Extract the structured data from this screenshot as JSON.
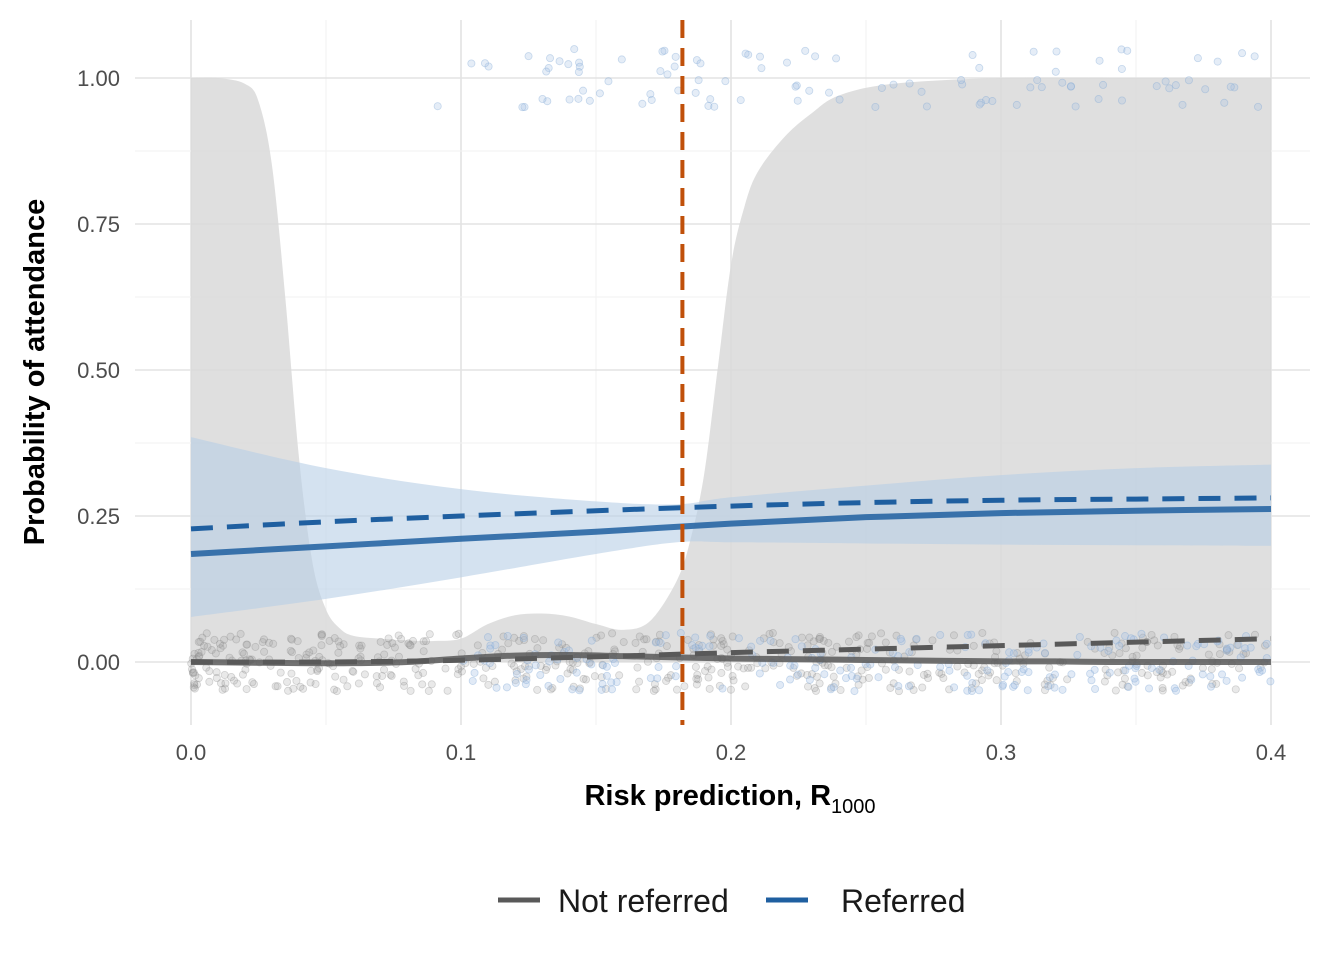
{
  "chart_data": {
    "type": "line",
    "xlabel": "Risk prediction, R",
    "xlabel_subscript": "1000",
    "ylabel": "Probability of attendance",
    "xlim": [
      0,
      0.4
    ],
    "ylim": [
      -0.105,
      1.1
    ],
    "x_ticks": [
      0,
      0.1,
      0.2,
      0.3,
      0.4
    ],
    "x_tick_labels": [
      "0.0",
      "0.1",
      "0.2",
      "0.3",
      "0.4"
    ],
    "y_ticks": [
      0,
      0.25,
      0.5,
      0.75,
      1.0
    ],
    "y_tick_labels": [
      "0.00",
      "0.25",
      "0.50",
      "0.75",
      "1.00"
    ],
    "grid": true,
    "legend_position": "bottom",
    "threshold": {
      "x": 0.182,
      "color": "#c0500a",
      "style": "dashed"
    },
    "colors": {
      "not_referred": "#595959",
      "referred": "#1f5fa0",
      "not_referred_band": "#d9d9d9",
      "referred_band": "#b8cfe6",
      "threshold": "#c0500a"
    },
    "series": [
      {
        "name": "Not referred",
        "key": "not_referred",
        "solid": {
          "x": [
            0,
            0.02,
            0.04,
            0.06,
            0.08,
            0.1,
            0.12,
            0.14,
            0.16,
            0.18,
            0.2,
            0.22,
            0.24,
            0.26,
            0.28,
            0.3,
            0.32,
            0.34,
            0.36,
            0.38,
            0.4
          ],
          "y": [
            0.0,
            -0.001,
            -0.002,
            -0.002,
            0.0,
            0.006,
            0.011,
            0.012,
            0.01,
            0.008,
            0.006,
            0.005,
            0.004,
            0.003,
            0.002,
            0.001,
            0.001,
            0.0,
            0.0,
            0.0,
            0.0
          ]
        },
        "dashed": {
          "x": [
            0,
            0.05,
            0.1,
            0.15,
            0.2,
            0.25,
            0.3,
            0.35,
            0.4
          ],
          "y": [
            0.0,
            0.0,
            0.003,
            0.009,
            0.016,
            0.022,
            0.028,
            0.034,
            0.04
          ]
        },
        "band": {
          "x": [
            0,
            0.01,
            0.02,
            0.025,
            0.03,
            0.035,
            0.04,
            0.045,
            0.05,
            0.055,
            0.06,
            0.07,
            0.08,
            0.09,
            0.1,
            0.11,
            0.12,
            0.13,
            0.14,
            0.15,
            0.16,
            0.17,
            0.18,
            0.185,
            0.19,
            0.195,
            0.2,
            0.205,
            0.21,
            0.22,
            0.23,
            0.24,
            0.26,
            0.3,
            0.35,
            0.4
          ],
          "lower": [
            0,
            0,
            0,
            0,
            0,
            0,
            0,
            0,
            0,
            0,
            0,
            0,
            0,
            0,
            0,
            0,
            0,
            0,
            0,
            0,
            0,
            0,
            0,
            0,
            0,
            0,
            0,
            0,
            0,
            0,
            0,
            0,
            0,
            0,
            0,
            0
          ],
          "upper": [
            1.0,
            1.0,
            0.99,
            0.96,
            0.85,
            0.62,
            0.35,
            0.17,
            0.09,
            0.058,
            0.045,
            0.04,
            0.037,
            0.036,
            0.04,
            0.065,
            0.08,
            0.083,
            0.078,
            0.065,
            0.055,
            0.07,
            0.14,
            0.21,
            0.32,
            0.5,
            0.68,
            0.78,
            0.84,
            0.9,
            0.94,
            0.97,
            0.99,
            1.0,
            1.0,
            1.0
          ]
        }
      },
      {
        "name": "Referred",
        "key": "referred",
        "solid": {
          "x": [
            0,
            0.05,
            0.1,
            0.15,
            0.2,
            0.25,
            0.3,
            0.35,
            0.4
          ],
          "y": [
            0.185,
            0.198,
            0.211,
            0.223,
            0.237,
            0.248,
            0.255,
            0.259,
            0.262
          ]
        },
        "dashed": {
          "x": [
            0,
            0.05,
            0.1,
            0.15,
            0.2,
            0.25,
            0.3,
            0.35,
            0.4
          ],
          "y": [
            0.228,
            0.24,
            0.25,
            0.259,
            0.267,
            0.273,
            0.277,
            0.279,
            0.281
          ]
        },
        "band": {
          "x": [
            0,
            0.05,
            0.1,
            0.15,
            0.18,
            0.2,
            0.25,
            0.3,
            0.35,
            0.4
          ],
          "lower": [
            0.077,
            0.108,
            0.145,
            0.185,
            0.205,
            0.205,
            0.203,
            0.201,
            0.2,
            0.199
          ],
          "upper": [
            0.385,
            0.332,
            0.296,
            0.275,
            0.27,
            0.282,
            0.302,
            0.32,
            0.332,
            0.338
          ]
        }
      }
    ],
    "legend": [
      {
        "label": "Not referred",
        "key": "not_referred"
      },
      {
        "label": "Referred",
        "key": "referred"
      }
    ]
  }
}
